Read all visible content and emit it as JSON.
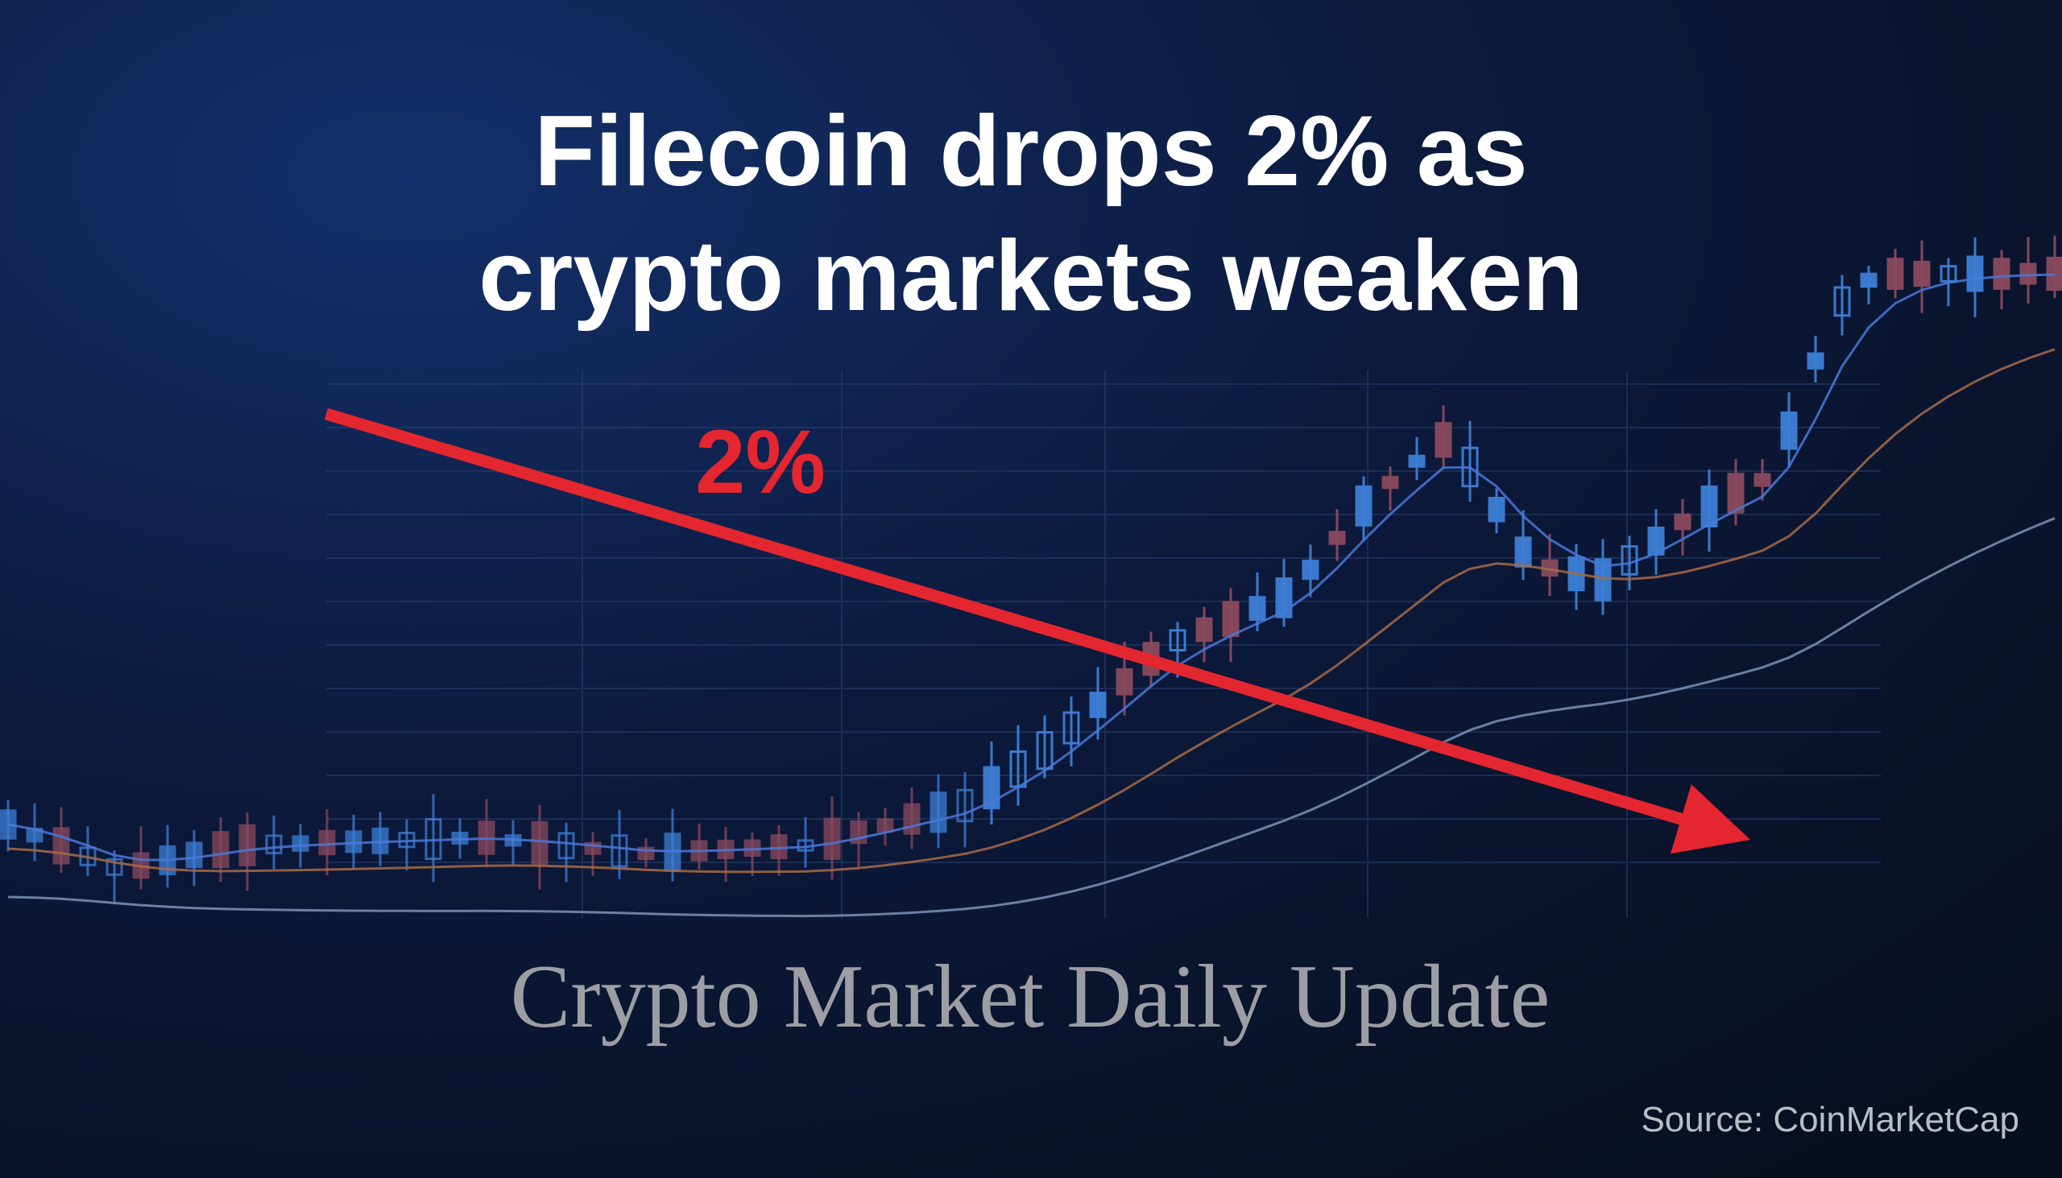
{
  "header": {
    "title_lines": [
      "Filecoin drops 2% as",
      "crypto markets weaken"
    ],
    "annotation": "2%",
    "subtitle": "Crypto Market Daily Update",
    "source": "Source: CoinMarketCap"
  }
}
